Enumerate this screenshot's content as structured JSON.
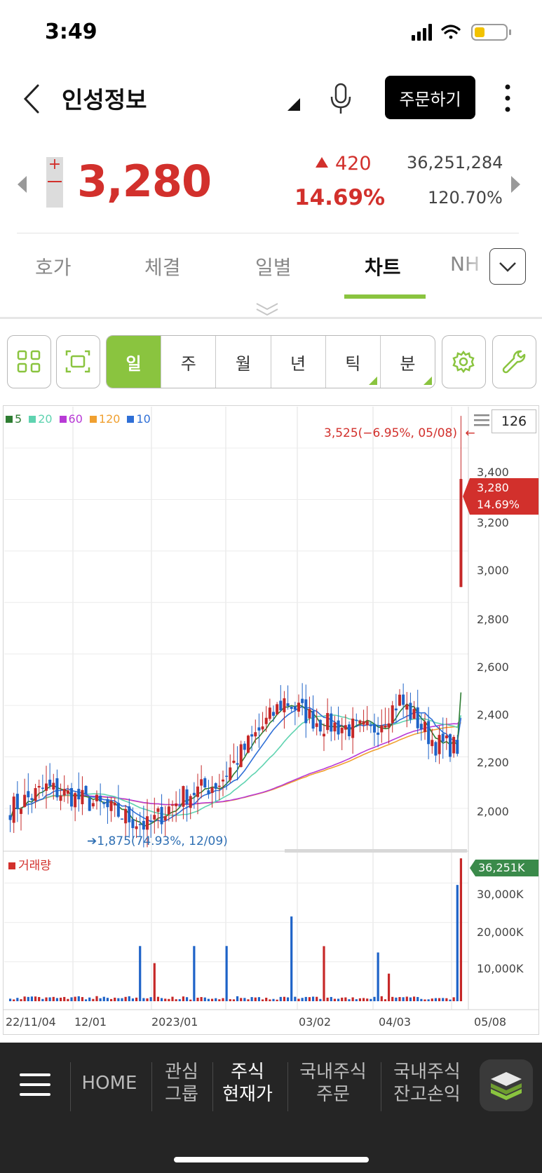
{
  "status": {
    "time": "3:49"
  },
  "header": {
    "stock_name": "인성정보",
    "order_button": "주문하기"
  },
  "quote": {
    "price": "3,280",
    "change": "420",
    "change_pct": "14.69%",
    "volume": "36,251,284",
    "volume_ratio": "120.70%",
    "updown_sign": "+"
  },
  "tabs": [
    {
      "label": "호가"
    },
    {
      "label": "체결"
    },
    {
      "label": "일별"
    },
    {
      "label": "차트",
      "active": true
    },
    {
      "label": "NH"
    }
  ],
  "periods": [
    {
      "label": "일",
      "active": true
    },
    {
      "label": "주"
    },
    {
      "label": "월"
    },
    {
      "label": "년"
    },
    {
      "label": "틱",
      "has_menu": true
    },
    {
      "label": "분",
      "has_menu": true
    }
  ],
  "chart": {
    "zoom_count": "126",
    "ma_legend": [
      {
        "label": "5",
        "color": "#2e7d32"
      },
      {
        "label": "20",
        "color": "#5fd3b0"
      },
      {
        "label": "60",
        "color": "#b83ad6"
      },
      {
        "label": "120",
        "color": "#f0a030"
      },
      {
        "label": "10",
        "color": "#2f6fd6"
      }
    ],
    "high_annotation": "3,525(−6.95%, 05/08)",
    "low_annotation": "1,875(74.93%, 12/09)",
    "current_price": "3,280",
    "current_pct": "14.69%",
    "volume_legend": "거래량",
    "current_volume": "36,251K"
  },
  "chart_data": {
    "type": "candlestick",
    "price_axis_ticks": [
      "3,400",
      "3,200",
      "3,000",
      "2,800",
      "2,600",
      "2,400",
      "2,200",
      "2,000"
    ],
    "volume_axis_ticks": [
      "30,000K",
      "20,000K",
      "10,000K"
    ],
    "date_labels": [
      "22/11/04",
      "12/01",
      "2023/01",
      "03/02",
      "04/03",
      "05/08"
    ],
    "y_range": [
      1850,
      3550
    ],
    "volume_range": [
      0,
      37000
    ],
    "high": {
      "value": 3525,
      "date": "05/08"
    },
    "low": {
      "value": 1875,
      "date": "12/09"
    },
    "last": {
      "value": 3280,
      "change_pct": 14.69
    },
    "last_volume_k": 36251
  },
  "nav": {
    "items": [
      {
        "line1": "HOME",
        "line2": ""
      },
      {
        "line1": "관심",
        "line2": "그룹"
      },
      {
        "line1": "주식",
        "line2": "현재가",
        "active": true
      },
      {
        "line1": "국내주식",
        "line2": "주문"
      },
      {
        "line1": "국내주식",
        "line2": "잔고손익"
      }
    ]
  }
}
